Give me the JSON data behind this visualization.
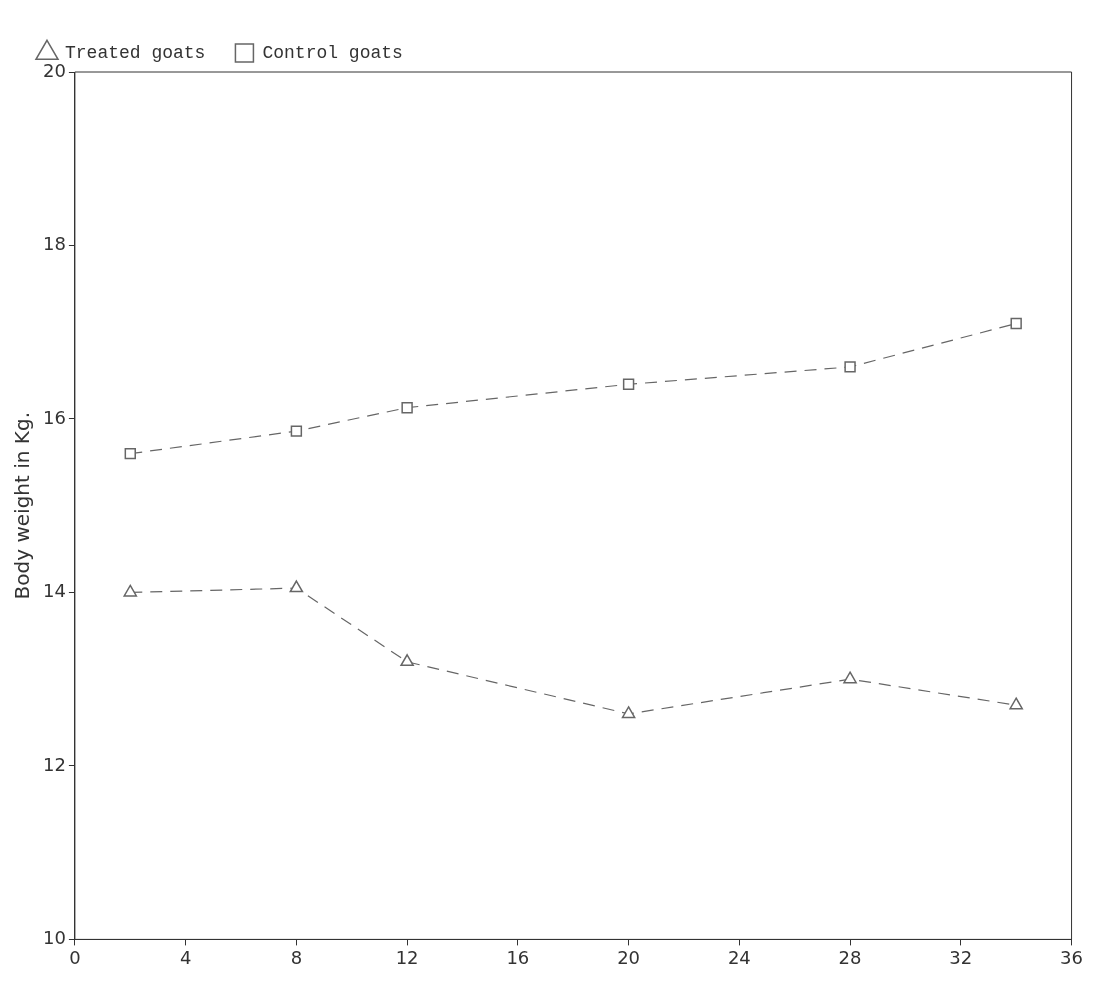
{
  "chart_data": {
    "type": "line",
    "ylabel": "Body weight in Kg.",
    "x": [
      2,
      8,
      12,
      20,
      28,
      34
    ],
    "series": [
      {
        "name": "Treated goats",
        "color": "#666666",
        "marker": "triangle",
        "values": [
          14.0,
          14.05,
          13.2,
          12.6,
          13.0,
          12.7
        ]
      },
      {
        "name": "Control goats",
        "color": "#666666",
        "marker": "square",
        "values": [
          15.6,
          15.86,
          16.13,
          16.4,
          16.6,
          17.1
        ]
      }
    ],
    "xlim": [
      0,
      36
    ],
    "xticks": [
      0,
      4,
      8,
      12,
      16,
      20,
      24,
      28,
      32,
      36
    ],
    "ylim": [
      10,
      20
    ],
    "yticks": [
      10,
      12,
      14,
      16,
      18,
      20
    ],
    "grid": false,
    "legend": "top",
    "line_style": "dashed"
  }
}
